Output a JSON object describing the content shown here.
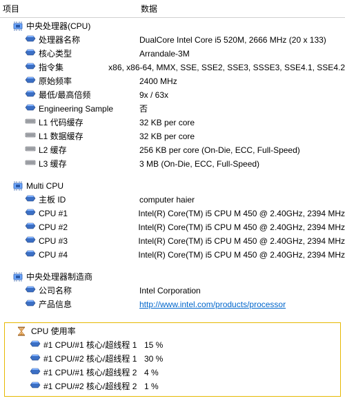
{
  "header": {
    "col1": "项目",
    "col2": "数据"
  },
  "colors": {
    "border": "#d0d0d0",
    "link": "#0066cc",
    "highlight_border": "#e6b800",
    "icon_blue_dark": "#2a5aa8",
    "icon_blue_light": "#6fa8ff",
    "icon_gray": "#9aa0a6",
    "icon_gray_dark": "#5a5e63",
    "hourglass": "#c97f2f"
  },
  "sections": [
    {
      "icon": "chip",
      "title": "中央处理器(CPU)",
      "items": [
        {
          "icon": "blue",
          "label": "处理器名称",
          "value": "DualCore Intel Core i5 520M, 2666 MHz (20 x 133)"
        },
        {
          "icon": "blue",
          "label": "核心类型",
          "value": "Arrandale-3M"
        },
        {
          "icon": "blue",
          "label": "指令集",
          "value": "x86, x86-64, MMX, SSE, SSE2, SSE3, SSSE3, SSE4.1, SSE4.2"
        },
        {
          "icon": "blue",
          "label": "原始频率",
          "value": "2400 MHz"
        },
        {
          "icon": "blue",
          "label": "最低/最高倍频",
          "value": "9x / 63x"
        },
        {
          "icon": "blue",
          "label": "Engineering Sample",
          "value": "否"
        },
        {
          "icon": "gray",
          "label": "L1 代码缓存",
          "value": "32 KB per core"
        },
        {
          "icon": "gray",
          "label": "L1 数据缓存",
          "value": "32 KB per core"
        },
        {
          "icon": "gray",
          "label": "L2 缓存",
          "value": "256 KB per core  (On-Die, ECC, Full-Speed)"
        },
        {
          "icon": "gray",
          "label": "L3 缓存",
          "value": "3 MB  (On-Die, ECC, Full-Speed)"
        }
      ]
    },
    {
      "icon": "chip",
      "title": "Multi CPU",
      "items": [
        {
          "icon": "blue",
          "label": "主板 ID",
          "value": "computer haier"
        },
        {
          "icon": "blue",
          "label": "CPU #1",
          "value": "Intel(R) Core(TM) i5 CPU M 450 @ 2.40GHz, 2394 MHz"
        },
        {
          "icon": "blue",
          "label": "CPU #2",
          "value": "Intel(R) Core(TM) i5 CPU M 450 @ 2.40GHz, 2394 MHz"
        },
        {
          "icon": "blue",
          "label": "CPU #3",
          "value": "Intel(R) Core(TM) i5 CPU M 450 @ 2.40GHz, 2394 MHz"
        },
        {
          "icon": "blue",
          "label": "CPU #4",
          "value": "Intel(R) Core(TM) i5 CPU M 450 @ 2.40GHz, 2394 MHz"
        }
      ]
    },
    {
      "icon": "chip",
      "title": "中央处理器制造商",
      "items": [
        {
          "icon": "blue",
          "label": "公司名称",
          "value": "Intel Corporation"
        },
        {
          "icon": "blue",
          "label": "产品信息",
          "value": "http://www.intel.com/products/processor",
          "is_link": true
        }
      ]
    }
  ],
  "usage_section": {
    "icon": "hourglass",
    "title": "CPU 使用率",
    "items": [
      {
        "icon": "blue",
        "label": "#1 CPU/#1 核心/超线程 1",
        "value": "15 %"
      },
      {
        "icon": "blue",
        "label": "#1 CPU/#2 核心/超线程 1",
        "value": "30 %"
      },
      {
        "icon": "blue",
        "label": "#1 CPU/#1 核心/超线程 2",
        "value": "4 %"
      },
      {
        "icon": "blue",
        "label": "#1 CPU/#2 核心/超线程 2",
        "value": "1 %"
      }
    ]
  }
}
